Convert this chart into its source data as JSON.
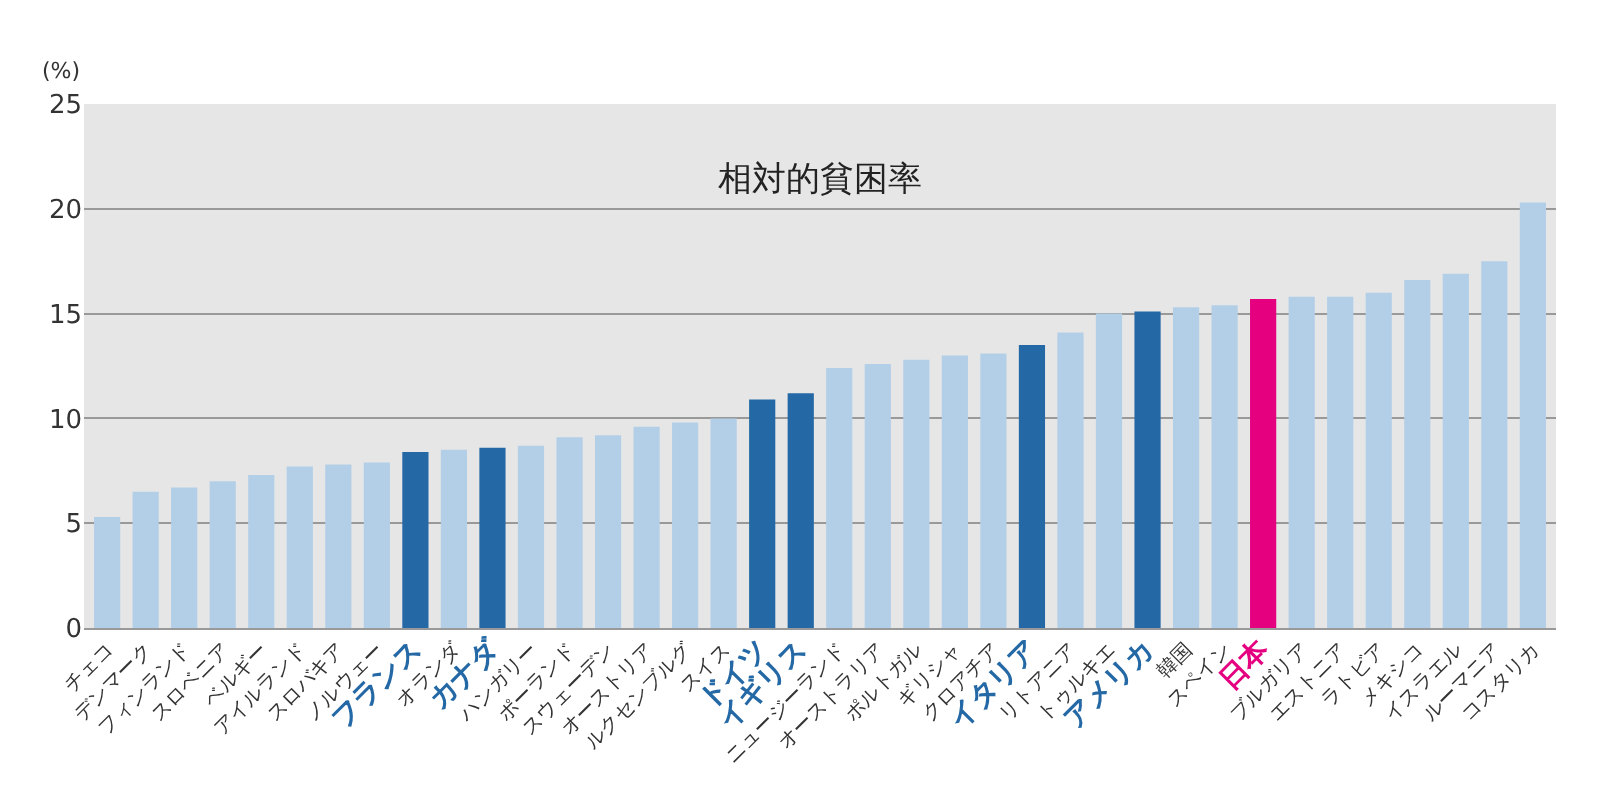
{
  "chart_data": {
    "type": "bar",
    "title": "相対的貧困率",
    "ylabel": "(%)",
    "categories": [
      "チェコ",
      "デンマーク",
      "フィンランド",
      "スロベニア",
      "ベルギー",
      "アイルランド",
      "スロバキア",
      "ノルウェー",
      "フランス",
      "オランダ",
      "カナダ",
      "ハンガリー",
      "ポーランド",
      "スウェーデン",
      "オーストリア",
      "ルクセンブルグ",
      "スイス",
      "ドイツ",
      "イギリス",
      "ニュージーランド",
      "オーストラリア",
      "ポルトガル",
      "ギリシャ",
      "クロアチア",
      "イタリア",
      "リトアニア",
      "トゥルキエ",
      "アメリカ",
      "韓国",
      "スペイン",
      "日本",
      "ブルガリア",
      "エストニア",
      "ラトビア",
      "メキシコ",
      "イスラエル",
      "ルーマニア",
      "コスタリカ"
    ],
    "values": [
      5.3,
      6.5,
      6.7,
      7.0,
      7.3,
      7.7,
      7.8,
      7.9,
      8.4,
      8.5,
      8.6,
      8.7,
      9.1,
      9.2,
      9.6,
      9.8,
      10.0,
      10.9,
      11.2,
      12.4,
      12.6,
      12.8,
      13.0,
      13.1,
      13.5,
      14.1,
      15.0,
      15.1,
      15.3,
      15.4,
      15.7,
      15.8,
      15.8,
      16.0,
      16.6,
      16.9,
      17.5,
      20.3
    ],
    "colors": [
      "#b3cfe8",
      "#b3cfe8",
      "#b3cfe8",
      "#b3cfe8",
      "#b3cfe8",
      "#b3cfe8",
      "#b3cfe8",
      "#b3cfe8",
      "#2469a5",
      "#b3cfe8",
      "#2469a5",
      "#b3cfe8",
      "#b3cfe8",
      "#b3cfe8",
      "#b3cfe8",
      "#b3cfe8",
      "#b3cfe8",
      "#2469a5",
      "#2469a5",
      "#b3cfe8",
      "#b3cfe8",
      "#b3cfe8",
      "#b3cfe8",
      "#b3cfe8",
      "#2469a5",
      "#b3cfe8",
      "#b3cfe8",
      "#2469a5",
      "#b3cfe8",
      "#b3cfe8",
      "#e4007f",
      "#b3cfe8",
      "#b3cfe8",
      "#b3cfe8",
      "#b3cfe8",
      "#b3cfe8",
      "#b3cfe8",
      "#b3cfe8"
    ],
    "ylim": [
      0,
      25
    ],
    "yticks": [
      0,
      5,
      10,
      15,
      20,
      25
    ],
    "grid": "y",
    "legend": false
  }
}
